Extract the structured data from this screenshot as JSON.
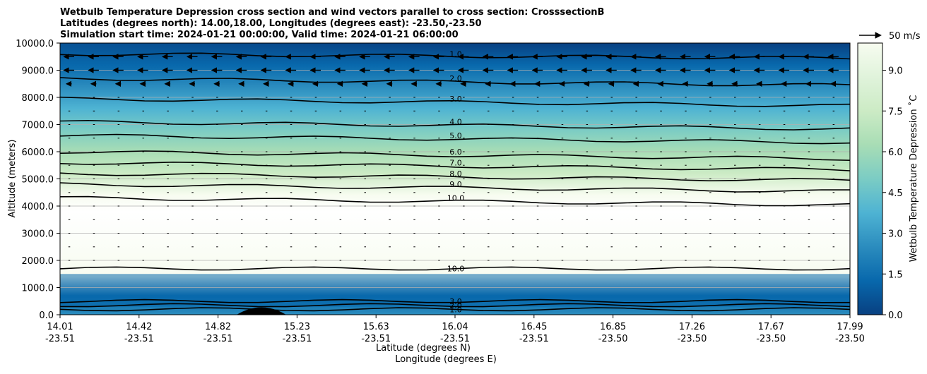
{
  "chart_data": {
    "type": "heatmap",
    "title_lines": [
      "Wetbulb Temperature Depression cross section and wind vectors parallel to cross section: CrosssectionB",
      "Latitudes (degrees north): 14.00,18.00, Longitudes (degrees east): -23.50,-23.50",
      "Simulation start time: 2024-01-21 00:00:00, Valid time: 2024-01-21 06:00:00"
    ],
    "ylabel": "Altitude (meters)",
    "xlabel_lat": "Latitude (degrees N)",
    "xlabel_lon": "Longitude (degrees E)",
    "ylim": [
      0,
      10000
    ],
    "yticks": [
      "0.0",
      "1000.0",
      "2000.0",
      "3000.0",
      "4000.0",
      "5000.0",
      "6000.0",
      "7000.0",
      "8000.0",
      "9000.0",
      "10000.0"
    ],
    "xticks_lat": [
      "14.01",
      "14.42",
      "14.82",
      "15.23",
      "15.63",
      "16.04",
      "16.45",
      "16.85",
      "17.26",
      "17.67",
      "17.99"
    ],
    "xticks_lon": [
      "-23.51",
      "-23.51",
      "-23.51",
      "-23.51",
      "-23.51",
      "-23.51",
      "-23.51",
      "-23.50",
      "-23.50",
      "-23.50",
      "-23.50"
    ],
    "grid": "horizontal lines at y ticks",
    "colormap": "GnBu",
    "colorbar": {
      "label": "Wetbulb Temperature Depression ˚C",
      "range": [
        0,
        10
      ],
      "ticks": [
        "0.0",
        "1.5",
        "3.0",
        "4.5",
        "6.0",
        "7.5",
        "9.0"
      ]
    },
    "wind_key": "50 m/s",
    "contours": [
      {
        "label": "1.0",
        "altitude_m": 200
      },
      {
        "label": "2.0",
        "altitude_m": 350
      },
      {
        "label": "3.0",
        "altitude_m": 500
      },
      {
        "label": "10.0",
        "altitude_m": 1700
      },
      {
        "label": "10.0",
        "altitude_m": 4300
      },
      {
        "label": "9.0",
        "altitude_m": 4800
      },
      {
        "label": "8.0",
        "altitude_m": 5200
      },
      {
        "label": "7.0",
        "altitude_m": 5600
      },
      {
        "label": "6.0",
        "altitude_m": 6000
      },
      {
        "label": "5.0",
        "altitude_m": 6600
      },
      {
        "label": "4.0",
        "altitude_m": 7100
      },
      {
        "label": "3.0",
        "altitude_m": 7950
      },
      {
        "label": "2.0",
        "altitude_m": 8700
      },
      {
        "label": "1.0",
        "altitude_m": 9600
      }
    ]
  }
}
